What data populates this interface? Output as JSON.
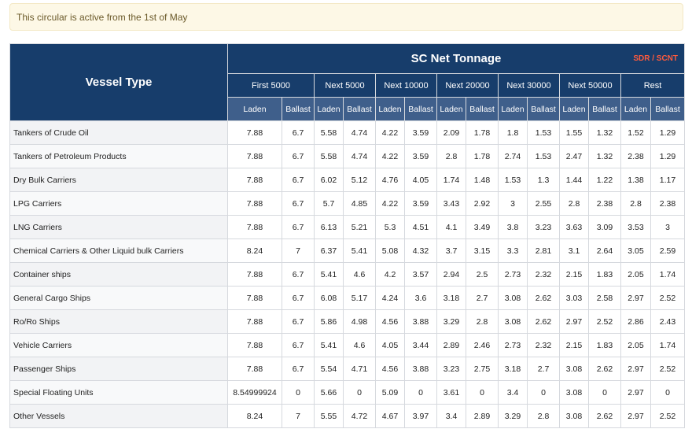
{
  "notice": {
    "text": "This circular is active from the 1st of May"
  },
  "table": {
    "vessel_type_header": "Vessel Type",
    "net_tonnage_header": "SC Net Tonnage",
    "sdr_link": "SDR / SCNT",
    "bands": [
      "First 5000",
      "Next 5000",
      "Next 10000",
      "Next 20000",
      "Next 30000",
      "Next 50000",
      "Rest"
    ],
    "sub_headers": [
      "Laden",
      "Ballast",
      "Laden",
      "Ballast",
      "Laden",
      "Ballast",
      "Laden",
      "Ballast",
      "Laden",
      "Ballast",
      "Laden",
      "Ballast",
      "Laden",
      "Ballast"
    ],
    "rows": [
      {
        "vessel": "Tankers of Crude Oil",
        "values": [
          "7.88",
          "6.7",
          "5.58",
          "4.74",
          "4.22",
          "3.59",
          "2.09",
          "1.78",
          "1.8",
          "1.53",
          "1.55",
          "1.32",
          "1.52",
          "1.29"
        ]
      },
      {
        "vessel": "Tankers of Petroleum Products",
        "values": [
          "7.88",
          "6.7",
          "5.58",
          "4.74",
          "4.22",
          "3.59",
          "2.8",
          "1.78",
          "2.74",
          "1.53",
          "2.47",
          "1.32",
          "2.38",
          "1.29"
        ]
      },
      {
        "vessel": "Dry Bulk Carriers",
        "values": [
          "7.88",
          "6.7",
          "6.02",
          "5.12",
          "4.76",
          "4.05",
          "1.74",
          "1.48",
          "1.53",
          "1.3",
          "1.44",
          "1.22",
          "1.38",
          "1.17"
        ]
      },
      {
        "vessel": "LPG Carriers",
        "values": [
          "7.88",
          "6.7",
          "5.7",
          "4.85",
          "4.22",
          "3.59",
          "3.43",
          "2.92",
          "3",
          "2.55",
          "2.8",
          "2.38",
          "2.8",
          "2.38"
        ]
      },
      {
        "vessel": "LNG Carriers",
        "values": [
          "7.88",
          "6.7",
          "6.13",
          "5.21",
          "5.3",
          "4.51",
          "4.1",
          "3.49",
          "3.8",
          "3.23",
          "3.63",
          "3.09",
          "3.53",
          "3"
        ]
      },
      {
        "vessel": "Chemical Carriers & Other Liquid bulk Carriers",
        "values": [
          "8.24",
          "7",
          "6.37",
          "5.41",
          "5.08",
          "4.32",
          "3.7",
          "3.15",
          "3.3",
          "2.81",
          "3.1",
          "2.64",
          "3.05",
          "2.59"
        ]
      },
      {
        "vessel": "Container ships",
        "values": [
          "7.88",
          "6.7",
          "5.41",
          "4.6",
          "4.2",
          "3.57",
          "2.94",
          "2.5",
          "2.73",
          "2.32",
          "2.15",
          "1.83",
          "2.05",
          "1.74"
        ]
      },
      {
        "vessel": "General Cargo Ships",
        "values": [
          "7.88",
          "6.7",
          "6.08",
          "5.17",
          "4.24",
          "3.6",
          "3.18",
          "2.7",
          "3.08",
          "2.62",
          "3.03",
          "2.58",
          "2.97",
          "2.52"
        ]
      },
      {
        "vessel": "Ro/Ro Ships",
        "values": [
          "7.88",
          "6.7",
          "5.86",
          "4.98",
          "4.56",
          "3.88",
          "3.29",
          "2.8",
          "3.08",
          "2.62",
          "2.97",
          "2.52",
          "2.86",
          "2.43"
        ]
      },
      {
        "vessel": "Vehicle Carriers",
        "values": [
          "7.88",
          "6.7",
          "5.41",
          "4.6",
          "4.05",
          "3.44",
          "2.89",
          "2.46",
          "2.73",
          "2.32",
          "2.15",
          "1.83",
          "2.05",
          "1.74"
        ]
      },
      {
        "vessel": "Passenger Ships",
        "values": [
          "7.88",
          "6.7",
          "5.54",
          "4.71",
          "4.56",
          "3.88",
          "3.23",
          "2.75",
          "3.18",
          "2.7",
          "3.08",
          "2.62",
          "2.97",
          "2.52"
        ]
      },
      {
        "vessel": "Special Floating Units",
        "values": [
          "8.54999924",
          "0",
          "5.66",
          "0",
          "5.09",
          "0",
          "3.61",
          "0",
          "3.4",
          "0",
          "3.08",
          "0",
          "2.97",
          "0"
        ]
      },
      {
        "vessel": "Other Vessels",
        "values": [
          "8.24",
          "7",
          "5.55",
          "4.72",
          "4.67",
          "3.97",
          "3.4",
          "2.89",
          "3.29",
          "2.8",
          "3.08",
          "2.62",
          "2.97",
          "2.52"
        ]
      }
    ]
  }
}
